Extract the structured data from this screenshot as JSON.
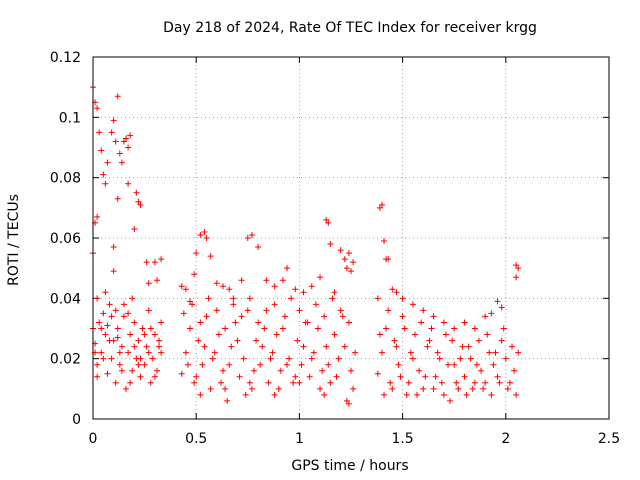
{
  "chart_data": {
    "type": "scatter",
    "title": "Day 218 of 2024, Rate Of TEC Index for receiver krgg",
    "xlabel": "GPS time / hours",
    "ylabel": "ROTI / TECUs",
    "xlim": [
      0,
      2.5
    ],
    "ylim": [
      0,
      0.12
    ],
    "x_ticks": [
      0,
      0.5,
      1,
      1.5,
      2,
      2.5
    ],
    "x_tick_labels": [
      "0",
      "0.5",
      "1",
      "1.5",
      "2",
      "2.5"
    ],
    "y_ticks": [
      0,
      0.02,
      0.04,
      0.06,
      0.08,
      0.1,
      0.12
    ],
    "y_tick_labels": [
      "0",
      "0.02",
      "0.04",
      "0.06",
      "0.08",
      "0.1",
      "0.12"
    ],
    "grid": true,
    "marker": "+",
    "color": "#ff0000",
    "series": [
      {
        "name": "ROTI",
        "points": [
          [
            0.0,
            0.11
          ],
          [
            0.01,
            0.105
          ],
          [
            0.02,
            0.103
          ],
          [
            0.03,
            0.095
          ],
          [
            0.04,
            0.089
          ],
          [
            0.05,
            0.081
          ],
          [
            0.06,
            0.078
          ],
          [
            0.07,
            0.085
          ],
          [
            0.09,
            0.095
          ],
          [
            0.1,
            0.099
          ],
          [
            0.11,
            0.092
          ],
          [
            0.12,
            0.107
          ],
          [
            0.13,
            0.088
          ],
          [
            0.14,
            0.085
          ],
          [
            0.15,
            0.092
          ],
          [
            0.16,
            0.093
          ],
          [
            0.17,
            0.09
          ],
          [
            0.18,
            0.094
          ],
          [
            0.12,
            0.073
          ],
          [
            0.17,
            0.078
          ],
          [
            0.21,
            0.075
          ],
          [
            0.22,
            0.072
          ],
          [
            0.23,
            0.071
          ],
          [
            0.01,
            0.065
          ],
          [
            0.02,
            0.067
          ],
          [
            0.0,
            0.055
          ],
          [
            0.1,
            0.057
          ],
          [
            0.1,
            0.049
          ],
          [
            0.26,
            0.052
          ],
          [
            0.3,
            0.052
          ],
          [
            0.27,
            0.045
          ],
          [
            0.31,
            0.046
          ],
          [
            0.33,
            0.053
          ],
          [
            0.2,
            0.063
          ],
          [
            0.0,
            0.03
          ],
          [
            0.01,
            0.025
          ],
          [
            0.02,
            0.018
          ],
          [
            0.03,
            0.032
          ],
          [
            0.04,
            0.022
          ],
          [
            0.05,
            0.035
          ],
          [
            0.06,
            0.028
          ],
          [
            0.07,
            0.015
          ],
          [
            0.08,
            0.038
          ],
          [
            0.09,
            0.02
          ],
          [
            0.1,
            0.026
          ],
          [
            0.11,
            0.012
          ],
          [
            0.12,
            0.03
          ],
          [
            0.13,
            0.018
          ],
          [
            0.14,
            0.024
          ],
          [
            0.15,
            0.034
          ],
          [
            0.16,
            0.01
          ],
          [
            0.17,
            0.022
          ],
          [
            0.18,
            0.028
          ],
          [
            0.19,
            0.016
          ],
          [
            0.2,
            0.032
          ],
          [
            0.21,
            0.02
          ],
          [
            0.22,
            0.026
          ],
          [
            0.23,
            0.014
          ],
          [
            0.24,
            0.03
          ],
          [
            0.25,
            0.018
          ],
          [
            0.26,
            0.024
          ],
          [
            0.27,
            0.036
          ],
          [
            0.28,
            0.012
          ],
          [
            0.29,
            0.02
          ],
          [
            0.3,
            0.028
          ],
          [
            0.31,
            0.016
          ],
          [
            0.32,
            0.024
          ],
          [
            0.33,
            0.032
          ],
          [
            0.02,
            0.04
          ],
          [
            0.06,
            0.042
          ],
          [
            0.11,
            0.036
          ],
          [
            0.15,
            0.038
          ],
          [
            0.19,
            0.04
          ],
          [
            0.02,
            0.014
          ],
          [
            0.05,
            0.02
          ],
          [
            0.08,
            0.026
          ],
          [
            0.13,
            0.022
          ],
          [
            0.18,
            0.012
          ],
          [
            0.23,
            0.02
          ],
          [
            0.28,
            0.03
          ],
          [
            0.33,
            0.022
          ],
          [
            0.04,
            0.03
          ],
          [
            0.09,
            0.034
          ],
          [
            0.14,
            0.016
          ],
          [
            0.2,
            0.024
          ],
          [
            0.25,
            0.028
          ],
          [
            0.3,
            0.014
          ],
          [
            0.01,
            0.022
          ],
          [
            0.07,
            0.031
          ],
          [
            0.12,
            0.027
          ],
          [
            0.17,
            0.035
          ],
          [
            0.22,
            0.018
          ],
          [
            0.27,
            0.022
          ],
          [
            0.32,
            0.026
          ],
          [
            0.43,
            0.044
          ],
          [
            0.45,
            0.043
          ],
          [
            0.47,
            0.039
          ],
          [
            0.49,
            0.048
          ],
          [
            0.5,
            0.055
          ],
          [
            0.52,
            0.061
          ],
          [
            0.54,
            0.062
          ],
          [
            0.55,
            0.06
          ],
          [
            0.57,
            0.054
          ],
          [
            0.6,
            0.045
          ],
          [
            0.63,
            0.044
          ],
          [
            0.66,
            0.043
          ],
          [
            0.68,
            0.04
          ],
          [
            0.72,
            0.046
          ],
          [
            0.75,
            0.06
          ],
          [
            0.77,
            0.061
          ],
          [
            0.8,
            0.057
          ],
          [
            0.84,
            0.046
          ],
          [
            0.88,
            0.044
          ],
          [
            0.92,
            0.046
          ],
          [
            0.94,
            0.05
          ],
          [
            0.98,
            0.043
          ],
          [
            1.02,
            0.042
          ],
          [
            1.06,
            0.044
          ],
          [
            1.1,
            0.047
          ],
          [
            1.13,
            0.066
          ],
          [
            1.14,
            0.065
          ],
          [
            1.17,
            0.042
          ],
          [
            1.2,
            0.056
          ],
          [
            1.22,
            0.053
          ],
          [
            1.23,
            0.05
          ],
          [
            1.24,
            0.055
          ],
          [
            1.25,
            0.049
          ],
          [
            1.26,
            0.052
          ],
          [
            1.15,
            0.058
          ],
          [
            0.43,
            0.015
          ],
          [
            0.45,
            0.022
          ],
          [
            0.47,
            0.03
          ],
          [
            0.49,
            0.012
          ],
          [
            0.51,
            0.026
          ],
          [
            0.53,
            0.018
          ],
          [
            0.55,
            0.034
          ],
          [
            0.57,
            0.01
          ],
          [
            0.59,
            0.022
          ],
          [
            0.61,
            0.028
          ],
          [
            0.63,
            0.016
          ],
          [
            0.65,
            0.006
          ],
          [
            0.67,
            0.024
          ],
          [
            0.69,
            0.032
          ],
          [
            0.71,
            0.014
          ],
          [
            0.73,
            0.02
          ],
          [
            0.75,
            0.036
          ],
          [
            0.77,
            0.01
          ],
          [
            0.79,
            0.026
          ],
          [
            0.81,
            0.018
          ],
          [
            0.83,
            0.03
          ],
          [
            0.85,
            0.012
          ],
          [
            0.87,
            0.022
          ],
          [
            0.89,
            0.028
          ],
          [
            0.91,
            0.016
          ],
          [
            0.93,
            0.034
          ],
          [
            0.95,
            0.02
          ],
          [
            0.97,
            0.012
          ],
          [
            0.99,
            0.026
          ],
          [
            1.01,
            0.018
          ],
          [
            1.03,
            0.032
          ],
          [
            1.05,
            0.014
          ],
          [
            1.07,
            0.022
          ],
          [
            1.09,
            0.03
          ],
          [
            1.11,
            0.016
          ],
          [
            1.13,
            0.024
          ],
          [
            1.15,
            0.012
          ],
          [
            1.17,
            0.028
          ],
          [
            1.19,
            0.02
          ],
          [
            1.21,
            0.034
          ],
          [
            1.23,
            0.006
          ],
          [
            1.25,
            0.016
          ],
          [
            1.27,
            0.022
          ],
          [
            0.44,
            0.035
          ],
          [
            0.48,
            0.038
          ],
          [
            0.52,
            0.032
          ],
          [
            0.56,
            0.04
          ],
          [
            0.6,
            0.036
          ],
          [
            0.64,
            0.03
          ],
          [
            0.68,
            0.038
          ],
          [
            0.72,
            0.034
          ],
          [
            0.76,
            0.04
          ],
          [
            0.8,
            0.032
          ],
          [
            0.84,
            0.036
          ],
          [
            0.88,
            0.038
          ],
          [
            0.92,
            0.03
          ],
          [
            0.96,
            0.04
          ],
          [
            1.0,
            0.036
          ],
          [
            1.04,
            0.032
          ],
          [
            1.08,
            0.038
          ],
          [
            1.12,
            0.034
          ],
          [
            1.16,
            0.04
          ],
          [
            1.2,
            0.036
          ],
          [
            1.24,
            0.032
          ],
          [
            0.46,
            0.018
          ],
          [
            0.5,
            0.014
          ],
          [
            0.54,
            0.024
          ],
          [
            0.58,
            0.02
          ],
          [
            0.62,
            0.012
          ],
          [
            0.66,
            0.018
          ],
          [
            0.7,
            0.026
          ],
          [
            0.74,
            0.008
          ],
          [
            0.78,
            0.016
          ],
          [
            0.82,
            0.024
          ],
          [
            0.86,
            0.02
          ],
          [
            0.9,
            0.01
          ],
          [
            0.94,
            0.018
          ],
          [
            0.98,
            0.014
          ],
          [
            1.02,
            0.024
          ],
          [
            1.06,
            0.02
          ],
          [
            1.1,
            0.01
          ],
          [
            1.14,
            0.018
          ],
          [
            1.18,
            0.014
          ],
          [
            1.22,
            0.024
          ],
          [
            1.26,
            0.01
          ],
          [
            0.52,
            0.008
          ],
          [
            0.64,
            0.01
          ],
          [
            0.76,
            0.012
          ],
          [
            0.88,
            0.008
          ],
          [
            1.0,
            0.012
          ],
          [
            1.12,
            0.008
          ],
          [
            1.24,
            0.005
          ],
          [
            1.38,
            0.04
          ],
          [
            1.39,
            0.07
          ],
          [
            1.4,
            0.071
          ],
          [
            1.41,
            0.059
          ],
          [
            1.42,
            0.053
          ],
          [
            1.43,
            0.053
          ],
          [
            1.45,
            0.043
          ],
          [
            1.47,
            0.042
          ],
          [
            1.5,
            0.04
          ],
          [
            1.55,
            0.038
          ],
          [
            1.6,
            0.036
          ],
          [
            1.65,
            0.034
          ],
          [
            1.7,
            0.032
          ],
          [
            1.75,
            0.03
          ],
          [
            1.8,
            0.032
          ],
          [
            1.85,
            0.03
          ],
          [
            1.9,
            0.034
          ],
          [
            1.93,
            0.035
          ],
          [
            1.96,
            0.039
          ],
          [
            1.98,
            0.037
          ],
          [
            2.05,
            0.051
          ],
          [
            2.06,
            0.05
          ],
          [
            2.05,
            0.047
          ],
          [
            1.38,
            0.015
          ],
          [
            1.4,
            0.022
          ],
          [
            1.42,
            0.03
          ],
          [
            1.44,
            0.012
          ],
          [
            1.46,
            0.026
          ],
          [
            1.48,
            0.018
          ],
          [
            1.5,
            0.034
          ],
          [
            1.52,
            0.008
          ],
          [
            1.54,
            0.022
          ],
          [
            1.56,
            0.028
          ],
          [
            1.58,
            0.016
          ],
          [
            1.6,
            0.01
          ],
          [
            1.62,
            0.024
          ],
          [
            1.64,
            0.03
          ],
          [
            1.66,
            0.014
          ],
          [
            1.68,
            0.02
          ],
          [
            1.7,
            0.008
          ],
          [
            1.72,
            0.018
          ],
          [
            1.74,
            0.026
          ],
          [
            1.76,
            0.012
          ],
          [
            1.78,
            0.02
          ],
          [
            1.8,
            0.014
          ],
          [
            1.82,
            0.024
          ],
          [
            1.84,
            0.01
          ],
          [
            1.86,
            0.018
          ],
          [
            1.88,
            0.016
          ],
          [
            1.9,
            0.012
          ],
          [
            1.92,
            0.022
          ],
          [
            1.94,
            0.018
          ],
          [
            1.96,
            0.014
          ],
          [
            1.98,
            0.026
          ],
          [
            2.0,
            0.02
          ],
          [
            2.02,
            0.012
          ],
          [
            2.04,
            0.016
          ],
          [
            2.06,
            0.022
          ],
          [
            1.39,
            0.028
          ],
          [
            1.43,
            0.036
          ],
          [
            1.47,
            0.024
          ],
          [
            1.51,
            0.03
          ],
          [
            1.55,
            0.02
          ],
          [
            1.59,
            0.032
          ],
          [
            1.63,
            0.026
          ],
          [
            1.67,
            0.022
          ],
          [
            1.71,
            0.028
          ],
          [
            1.75,
            0.018
          ],
          [
            1.79,
            0.024
          ],
          [
            1.83,
            0.02
          ],
          [
            1.87,
            0.026
          ],
          [
            1.91,
            0.028
          ],
          [
            1.95,
            0.022
          ],
          [
            1.99,
            0.03
          ],
          [
            2.03,
            0.024
          ],
          [
            1.41,
            0.008
          ],
          [
            1.45,
            0.01
          ],
          [
            1.49,
            0.014
          ],
          [
            1.53,
            0.012
          ],
          [
            1.57,
            0.008
          ],
          [
            1.61,
            0.014
          ],
          [
            1.65,
            0.01
          ],
          [
            1.69,
            0.012
          ],
          [
            1.73,
            0.006
          ],
          [
            1.77,
            0.01
          ],
          [
            1.81,
            0.008
          ],
          [
            1.85,
            0.012
          ],
          [
            1.89,
            0.01
          ],
          [
            1.93,
            0.008
          ],
          [
            1.97,
            0.012
          ],
          [
            2.01,
            0.01
          ],
          [
            2.05,
            0.008
          ]
        ]
      }
    ]
  }
}
